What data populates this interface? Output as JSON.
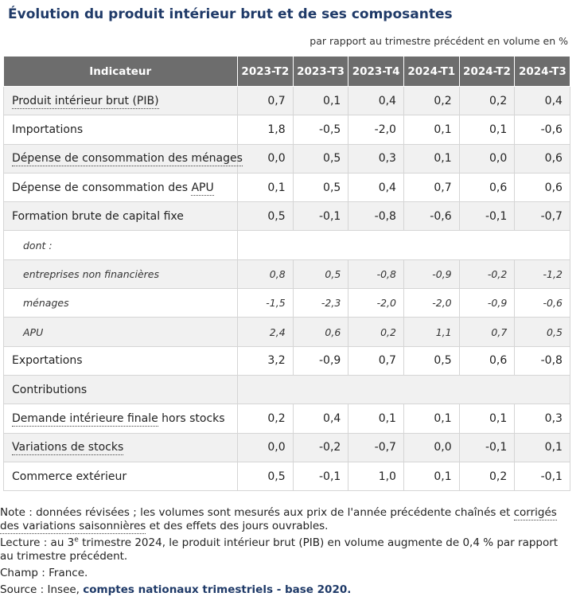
{
  "title": "Évolution du produit intérieur brut et de ses composantes",
  "unit_note": "par rapport au trimestre précédent en volume en %",
  "table": {
    "headers": [
      "Indicateur",
      "2023-T2",
      "2023-T3",
      "2023-T4",
      "2024-T1",
      "2024-T2",
      "2024-T3"
    ],
    "rows": [
      {
        "label": "Produit intérieur brut (PIB)",
        "values": [
          "0,7",
          "0,1",
          "0,4",
          "0,2",
          "0,2",
          "0,4"
        ]
      },
      {
        "label": "Importations",
        "values": [
          "1,8",
          "-0,5",
          "-2,0",
          "0,1",
          "0,1",
          "-0,6"
        ]
      },
      {
        "label": "Dépense de consommation des ménages",
        "values": [
          "0,0",
          "0,5",
          "0,3",
          "0,1",
          "0,0",
          "0,6"
        ]
      },
      {
        "label_pre": "Dépense de consommation des ",
        "label_link": "APU",
        "values": [
          "0,1",
          "0,5",
          "0,4",
          "0,7",
          "0,6",
          "0,6"
        ]
      },
      {
        "label": "Formation brute de capital fixe",
        "values": [
          "0,5",
          "-0,1",
          "-0,8",
          "-0,6",
          "-0,1",
          "-0,7"
        ]
      },
      {
        "label": "dont :"
      },
      {
        "label": "entreprises non financières",
        "values": [
          "0,8",
          "0,5",
          "-0,8",
          "-0,9",
          "-0,2",
          "-1,2"
        ]
      },
      {
        "label": "ménages",
        "values": [
          "-1,5",
          "-2,3",
          "-2,0",
          "-2,0",
          "-0,9",
          "-0,6"
        ]
      },
      {
        "label": "APU",
        "values": [
          "2,4",
          "0,6",
          "0,2",
          "1,1",
          "0,7",
          "0,5"
        ]
      },
      {
        "label": "Exportations",
        "values": [
          "3,2",
          "-0,9",
          "0,7",
          "0,5",
          "0,6",
          "-0,8"
        ]
      },
      {
        "label": "Contributions"
      },
      {
        "label_link": "Demande intérieure finale",
        "label_post": " hors stocks",
        "values": [
          "0,2",
          "0,4",
          "0,1",
          "0,1",
          "0,1",
          "0,3"
        ]
      },
      {
        "label": "Variations de stocks",
        "values": [
          "0,0",
          "-0,2",
          "-0,7",
          "0,0",
          "-0,1",
          "0,1"
        ]
      },
      {
        "label": "Commerce extérieur",
        "values": [
          "0,5",
          "-0,1",
          "1,0",
          "0,1",
          "0,2",
          "-0,1"
        ]
      }
    ]
  },
  "notes": {
    "note_pre": "Note : données révisées ; les volumes sont mesurés aux prix de l'année précédente chaînés et ",
    "note_link": "corrigés des variations saisonnières",
    "note_post": " et des effets des jours ouvrables.",
    "lecture_pre": "Lecture : au 3",
    "lecture_sup": "e",
    "lecture_post": " trimestre 2024, le produit intérieur brut (PIB) en volume augmente de 0,4 % par rapport au trimestre précédent.",
    "champ": "Champ : France.",
    "source_pre": "Source : Insee, ",
    "source_link": "comptes nationaux trimestriels - base 2020."
  }
}
